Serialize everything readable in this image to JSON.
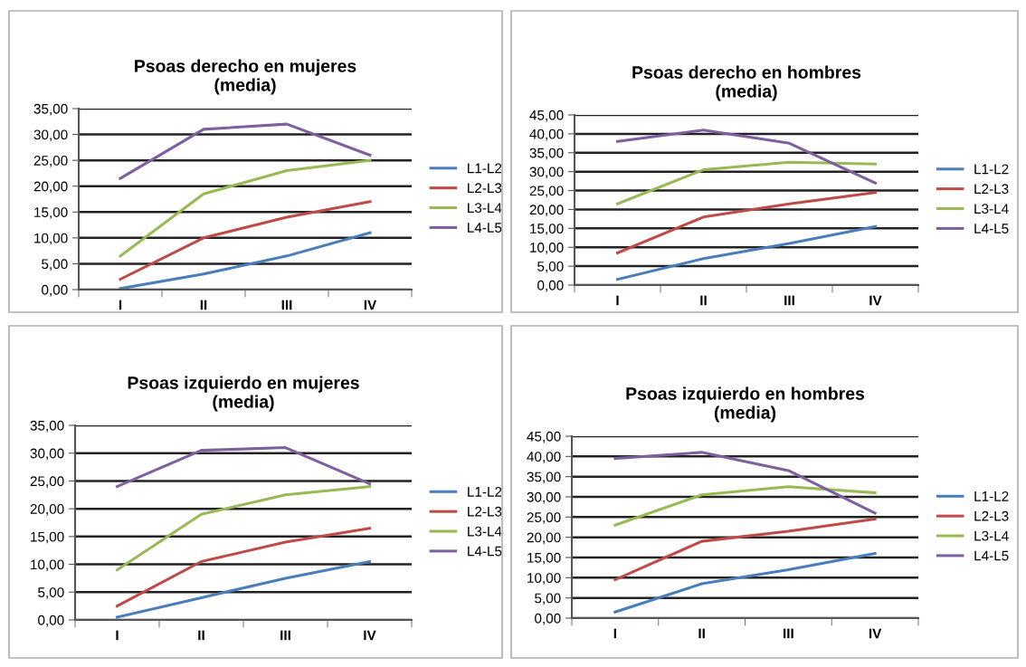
{
  "chart_data": [
    {
      "type": "line",
      "title": "Psoas derecho en mujeres\n(media)",
      "categories": [
        "I",
        "II",
        "III",
        "IV"
      ],
      "ylim": [
        0,
        35
      ],
      "yticks": [
        {
          "value": 0,
          "label": "0,00"
        },
        {
          "value": 5,
          "label": "5,00"
        },
        {
          "value": 10,
          "label": "10,00"
        },
        {
          "value": 15,
          "label": "15,00"
        },
        {
          "value": 20,
          "label": "20,00"
        },
        {
          "value": 25,
          "label": "25,00"
        },
        {
          "value": 30,
          "label": "30,00"
        },
        {
          "value": 35,
          "label": "35,00"
        }
      ],
      "grid": "y",
      "legend": "right",
      "series": [
        {
          "name": "L1-L2",
          "color": "#4a7ebb",
          "values": [
            0.2,
            3,
            6.5,
            11
          ]
        },
        {
          "name": "L2-L3",
          "color": "#be4b48",
          "values": [
            2,
            10,
            14,
            17
          ]
        },
        {
          "name": "L3-L4",
          "color": "#98b954",
          "values": [
            6.5,
            18.5,
            23,
            25
          ]
        },
        {
          "name": "L4-L5",
          "color": "#7d60a0",
          "values": [
            21.5,
            31,
            32,
            26
          ]
        }
      ]
    },
    {
      "type": "line",
      "title": "Psoas derecho en hombres\n(media)",
      "categories": [
        "I",
        "II",
        "III",
        "IV"
      ],
      "ylim": [
        0,
        45
      ],
      "yticks": [
        {
          "value": 0,
          "label": "0,00"
        },
        {
          "value": 5,
          "label": "5,00"
        },
        {
          "value": 10,
          "label": "10,00"
        },
        {
          "value": 15,
          "label": "15,00"
        },
        {
          "value": 20,
          "label": "20,00"
        },
        {
          "value": 25,
          "label": "25,00"
        },
        {
          "value": 30,
          "label": "30,00"
        },
        {
          "value": 35,
          "label": "35,00"
        },
        {
          "value": 40,
          "label": "40,00"
        },
        {
          "value": 45,
          "label": "45,00"
        }
      ],
      "grid": "y",
      "legend": "right",
      "series": [
        {
          "name": "L1-L2",
          "color": "#4a7ebb",
          "values": [
            1.5,
            7,
            11,
            15.5
          ]
        },
        {
          "name": "L2-L3",
          "color": "#be4b48",
          "values": [
            8.5,
            18,
            21.5,
            24.5
          ]
        },
        {
          "name": "L3-L4",
          "color": "#98b954",
          "values": [
            21.5,
            30.5,
            32.5,
            32
          ]
        },
        {
          "name": "L4-L5",
          "color": "#7d60a0",
          "values": [
            38,
            41,
            37.5,
            27
          ]
        }
      ]
    },
    {
      "type": "line",
      "title": "Psoas izquierdo en mujeres\n(media)",
      "categories": [
        "I",
        "II",
        "III",
        "IV"
      ],
      "ylim": [
        0,
        35
      ],
      "yticks": [
        {
          "value": 0,
          "label": "0,00"
        },
        {
          "value": 5,
          "label": "5,00"
        },
        {
          "value": 10,
          "label": "10,00"
        },
        {
          "value": 15,
          "label": "15,00"
        },
        {
          "value": 20,
          "label": "20,00"
        },
        {
          "value": 25,
          "label": "25,00"
        },
        {
          "value": 30,
          "label": "30,00"
        },
        {
          "value": 35,
          "label": "35,00"
        }
      ],
      "grid": "y",
      "legend": "right",
      "series": [
        {
          "name": "L1-L2",
          "color": "#4a7ebb",
          "values": [
            0.5,
            4,
            7.5,
            10.5
          ]
        },
        {
          "name": "L2-L3",
          "color": "#be4b48",
          "values": [
            2.5,
            10.5,
            14,
            16.5
          ]
        },
        {
          "name": "L3-L4",
          "color": "#98b954",
          "values": [
            9,
            19,
            22.5,
            24
          ]
        },
        {
          "name": "L4-L5",
          "color": "#7d60a0",
          "values": [
            24,
            30.5,
            31,
            24.5
          ]
        }
      ]
    },
    {
      "type": "line",
      "title": "Psoas izquierdo en hombres\n(media)",
      "categories": [
        "I",
        "II",
        "III",
        "IV"
      ],
      "ylim": [
        0,
        45
      ],
      "yticks": [
        {
          "value": 0,
          "label": "0,00"
        },
        {
          "value": 5,
          "label": "5,00"
        },
        {
          "value": 10,
          "label": "10,00"
        },
        {
          "value": 15,
          "label": "15,00"
        },
        {
          "value": 20,
          "label": "20,00"
        },
        {
          "value": 25,
          "label": "25,00"
        },
        {
          "value": 30,
          "label": "30,00"
        },
        {
          "value": 35,
          "label": "35,00"
        },
        {
          "value": 40,
          "label": "40,00"
        },
        {
          "value": 45,
          "label": "45,00"
        }
      ],
      "grid": "y",
      "legend": "right",
      "series": [
        {
          "name": "L1-L2",
          "color": "#4a7ebb",
          "values": [
            1.5,
            8.5,
            12,
            16
          ]
        },
        {
          "name": "L2-L3",
          "color": "#be4b48",
          "values": [
            9.5,
            19,
            21.5,
            24.5
          ]
        },
        {
          "name": "L3-L4",
          "color": "#98b954",
          "values": [
            23,
            30.5,
            32.5,
            31
          ]
        },
        {
          "name": "L4-L5",
          "color": "#7d60a0",
          "values": [
            39.5,
            41,
            36.5,
            26
          ]
        }
      ]
    }
  ]
}
